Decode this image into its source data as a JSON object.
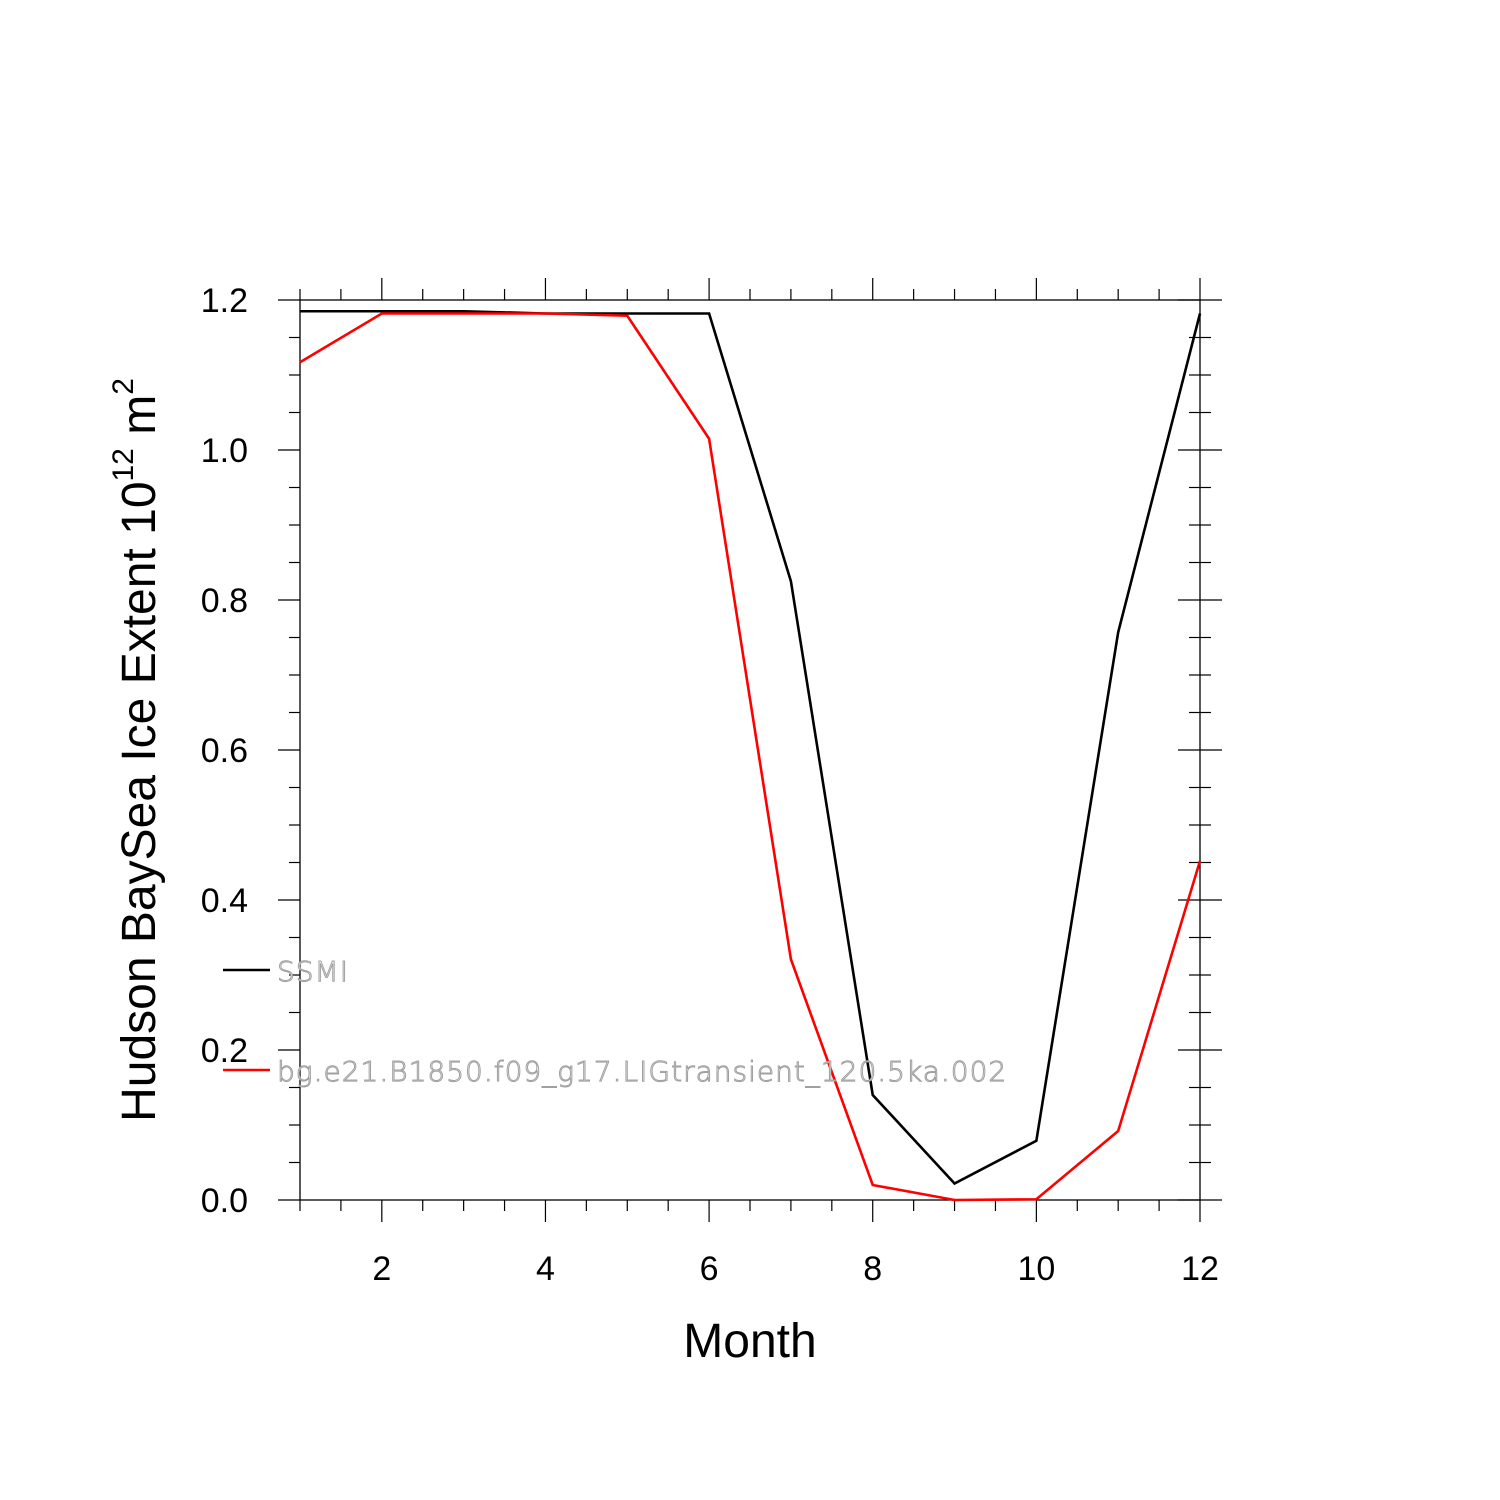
{
  "chart_data": {
    "type": "line",
    "xlabel": "Month",
    "ylabel": {
      "text": "Hudson BaySea Ice Extent 10",
      "exponent": "12",
      "unit": " m",
      "unit_exponent": "2"
    },
    "xlim": [
      1,
      12
    ],
    "ylim": [
      0,
      1.2
    ],
    "x_ticks": [
      2,
      4,
      6,
      8,
      10,
      12
    ],
    "y_ticks": [
      "0.0",
      "0.2",
      "0.4",
      "0.6",
      "0.8",
      "1.0",
      "1.2"
    ],
    "x": [
      1,
      2,
      3,
      4,
      5,
      6,
      7,
      8,
      9,
      10,
      11,
      12
    ],
    "legend_position": "left-inside-bottom",
    "series": [
      {
        "name": "SSMI",
        "color": "#000000",
        "values": [
          1.185,
          1.185,
          1.185,
          1.182,
          1.182,
          1.182,
          0.825,
          0.14,
          0.022,
          0.079,
          0.757,
          1.182
        ]
      },
      {
        "name": "bg.e21.B1850.f09_g17.LIGtransient_120.5ka.002",
        "color": "#ff0000",
        "values": [
          1.117,
          1.182,
          1.182,
          1.182,
          1.179,
          1.015,
          0.321,
          0.02,
          0.0,
          0.001,
          0.092,
          0.452
        ]
      }
    ]
  }
}
